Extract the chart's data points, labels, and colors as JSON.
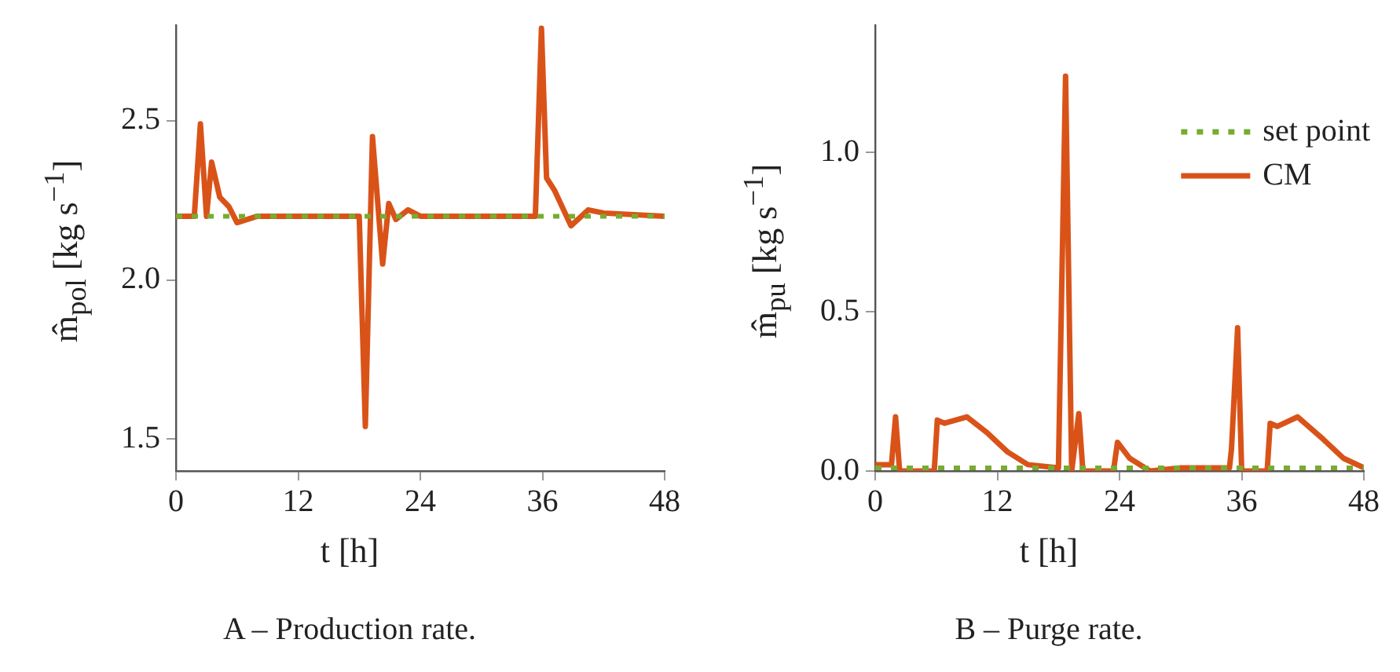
{
  "chart_data": [
    {
      "type": "line",
      "title": "A – Production rate.",
      "xlabel": "t [h]",
      "ylabel": "m̂$_{pol}$ [kg s$^{−1}$]",
      "xlim": [
        0,
        48
      ],
      "xticks": [
        0,
        12,
        24,
        36,
        48
      ],
      "ylim": [
        1.4,
        2.8
      ],
      "yticks": [
        1.5,
        {
          "value": 2,
          "label": "2.0"
        },
        2.5
      ],
      "grid": false,
      "legend": false,
      "series": [
        {
          "color": "#77ac30",
          "line_style": "dotted",
          "x": [
            0,
            48
          ],
          "values": [
            2.2,
            2.2
          ]
        },
        {
          "color": "#d95319",
          "line_style": "solid",
          "x": [
            0,
            1.8,
            2.4,
            3.0,
            3.5,
            4.3,
            5.2,
            6.0,
            8,
            18,
            18.6,
            19.3,
            20.3,
            20.9,
            21.6,
            22.8,
            24,
            35.3,
            35.9,
            36.4,
            37.2,
            38.8,
            40.5,
            42,
            48
          ],
          "values": [
            2.2,
            2.2,
            2.49,
            2.2,
            2.37,
            2.26,
            2.23,
            2.18,
            2.2,
            2.2,
            1.54,
            2.45,
            2.05,
            2.24,
            2.19,
            2.22,
            2.2,
            2.2,
            2.79,
            2.32,
            2.28,
            2.17,
            2.22,
            2.21,
            2.2
          ]
        }
      ]
    },
    {
      "type": "line",
      "title": "B – Purge rate.",
      "xlabel": "t [h]",
      "ylabel": "m̂$_{pu}$ [kg s$^{−1}$]",
      "xlim": [
        0,
        48
      ],
      "xticks": [
        0,
        12,
        24,
        36,
        48
      ],
      "ylim": [
        0,
        1.4
      ],
      "yticks": [
        {
          "value": 0,
          "label": "0.0"
        },
        0.5,
        {
          "value": 1,
          "label": "1.0"
        }
      ],
      "grid": false,
      "legend": "top right",
      "series": [
        {
          "name": "set point",
          "color": "#77ac30",
          "line_style": "dotted",
          "x": [
            0,
            48
          ],
          "values": [
            0.01,
            0.01
          ]
        },
        {
          "name": "CM",
          "color": "#d95319",
          "line_style": "solid",
          "x": [
            0,
            1.6,
            2,
            2.4,
            5.8,
            6.1,
            6.8,
            9,
            11,
            13,
            15,
            18,
            18.7,
            19.3,
            20,
            20.4,
            23.4,
            23.8,
            25,
            27,
            30,
            34.8,
            35,
            35.6,
            36,
            38.5,
            38.8,
            39.5,
            41.5,
            44,
            46,
            48
          ],
          "values": [
            0.02,
            0.02,
            0.17,
            0,
            0,
            0.16,
            0.15,
            0.17,
            0.12,
            0.06,
            0.02,
            0.01,
            1.24,
            0,
            0.18,
            0,
            0,
            0.09,
            0.04,
            0,
            0.01,
            0.01,
            0.07,
            0.45,
            0,
            0,
            0.15,
            0.14,
            0.17,
            0.1,
            0.04,
            0.01
          ]
        }
      ]
    }
  ]
}
